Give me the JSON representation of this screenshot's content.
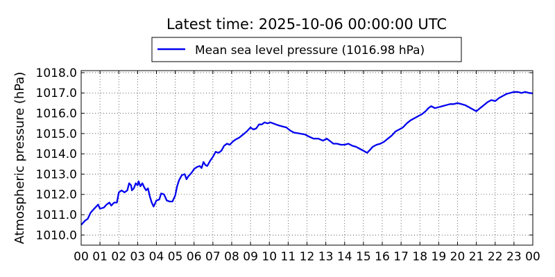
{
  "chart_data": {
    "type": "line",
    "title": "Latest time: 2025-10-06 00:00:00 UTC",
    "ylabel": "Atmospheric pressure (hPa)",
    "xlabel": "",
    "ylim": [
      1009.5,
      1018.1
    ],
    "xlim": [
      0,
      24
    ],
    "yticks": [
      1010.0,
      1011.0,
      1012.0,
      1013.0,
      1014.0,
      1015.0,
      1016.0,
      1017.0,
      1018.0
    ],
    "xtick_labels": [
      "00",
      "01",
      "02",
      "03",
      "04",
      "05",
      "06",
      "07",
      "08",
      "09",
      "10",
      "11",
      "12",
      "13",
      "14",
      "15",
      "16",
      "17",
      "18",
      "19",
      "20",
      "21",
      "22",
      "23",
      "00"
    ],
    "grid": true,
    "legend_position": "top-center",
    "series": [
      {
        "name": "Mean sea level pressure (1016.98 hPa)",
        "color": "#0000ee",
        "points": [
          [
            0.0,
            1010.5
          ],
          [
            0.2,
            1010.7
          ],
          [
            0.35,
            1010.8
          ],
          [
            0.5,
            1011.1
          ],
          [
            0.65,
            1011.25
          ],
          [
            0.8,
            1011.4
          ],
          [
            0.9,
            1011.5
          ],
          [
            1.0,
            1011.3
          ],
          [
            1.2,
            1011.35
          ],
          [
            1.35,
            1011.5
          ],
          [
            1.5,
            1011.6
          ],
          [
            1.6,
            1011.45
          ],
          [
            1.75,
            1011.6
          ],
          [
            1.9,
            1011.6
          ],
          [
            2.0,
            1012.1
          ],
          [
            2.15,
            1012.2
          ],
          [
            2.3,
            1012.1
          ],
          [
            2.45,
            1012.2
          ],
          [
            2.55,
            1012.55
          ],
          [
            2.65,
            1012.45
          ],
          [
            2.7,
            1012.2
          ],
          [
            2.8,
            1012.3
          ],
          [
            2.9,
            1012.55
          ],
          [
            3.0,
            1012.45
          ],
          [
            3.05,
            1012.65
          ],
          [
            3.15,
            1012.4
          ],
          [
            3.25,
            1012.55
          ],
          [
            3.35,
            1012.35
          ],
          [
            3.45,
            1012.2
          ],
          [
            3.55,
            1012.3
          ],
          [
            3.65,
            1011.9
          ],
          [
            3.75,
            1011.6
          ],
          [
            3.85,
            1011.4
          ],
          [
            4.0,
            1011.7
          ],
          [
            4.15,
            1011.75
          ],
          [
            4.25,
            1012.05
          ],
          [
            4.4,
            1012.0
          ],
          [
            4.55,
            1011.7
          ],
          [
            4.7,
            1011.65
          ],
          [
            4.85,
            1011.65
          ],
          [
            5.0,
            1011.95
          ],
          [
            5.1,
            1012.4
          ],
          [
            5.2,
            1012.7
          ],
          [
            5.35,
            1012.95
          ],
          [
            5.5,
            1013.0
          ],
          [
            5.6,
            1012.75
          ],
          [
            5.7,
            1012.9
          ],
          [
            5.85,
            1013.05
          ],
          [
            6.0,
            1013.25
          ],
          [
            6.15,
            1013.35
          ],
          [
            6.3,
            1013.4
          ],
          [
            6.4,
            1013.3
          ],
          [
            6.5,
            1013.6
          ],
          [
            6.6,
            1013.45
          ],
          [
            6.7,
            1013.4
          ],
          [
            6.85,
            1013.65
          ],
          [
            7.0,
            1013.85
          ],
          [
            7.15,
            1014.1
          ],
          [
            7.3,
            1014.05
          ],
          [
            7.45,
            1014.15
          ],
          [
            7.6,
            1014.4
          ],
          [
            7.75,
            1014.5
          ],
          [
            7.9,
            1014.45
          ],
          [
            8.05,
            1014.6
          ],
          [
            8.2,
            1014.7
          ],
          [
            8.4,
            1014.8
          ],
          [
            8.6,
            1014.95
          ],
          [
            8.8,
            1015.1
          ],
          [
            9.0,
            1015.3
          ],
          [
            9.15,
            1015.2
          ],
          [
            9.3,
            1015.25
          ],
          [
            9.45,
            1015.45
          ],
          [
            9.6,
            1015.45
          ],
          [
            9.75,
            1015.55
          ],
          [
            9.9,
            1015.5
          ],
          [
            10.05,
            1015.55
          ],
          [
            10.2,
            1015.5
          ],
          [
            10.35,
            1015.45
          ],
          [
            10.5,
            1015.4
          ],
          [
            10.7,
            1015.35
          ],
          [
            10.9,
            1015.3
          ],
          [
            11.1,
            1015.15
          ],
          [
            11.3,
            1015.05
          ],
          [
            11.6,
            1015.0
          ],
          [
            11.9,
            1014.95
          ],
          [
            12.1,
            1014.85
          ],
          [
            12.35,
            1014.75
          ],
          [
            12.6,
            1014.75
          ],
          [
            12.85,
            1014.65
          ],
          [
            13.05,
            1014.75
          ],
          [
            13.2,
            1014.65
          ],
          [
            13.4,
            1014.5
          ],
          [
            13.6,
            1014.5
          ],
          [
            13.8,
            1014.45
          ],
          [
            14.0,
            1014.45
          ],
          [
            14.2,
            1014.5
          ],
          [
            14.4,
            1014.4
          ],
          [
            14.6,
            1014.35
          ],
          [
            14.8,
            1014.25
          ],
          [
            15.0,
            1014.15
          ],
          [
            15.2,
            1014.05
          ],
          [
            15.35,
            1014.2
          ],
          [
            15.5,
            1014.35
          ],
          [
            15.7,
            1014.45
          ],
          [
            15.9,
            1014.5
          ],
          [
            16.1,
            1014.6
          ],
          [
            16.3,
            1014.75
          ],
          [
            16.5,
            1014.9
          ],
          [
            16.7,
            1015.1
          ],
          [
            16.9,
            1015.2
          ],
          [
            17.1,
            1015.3
          ],
          [
            17.3,
            1015.5
          ],
          [
            17.5,
            1015.65
          ],
          [
            17.7,
            1015.75
          ],
          [
            17.9,
            1015.85
          ],
          [
            18.1,
            1015.95
          ],
          [
            18.3,
            1016.1
          ],
          [
            18.45,
            1016.25
          ],
          [
            18.6,
            1016.35
          ],
          [
            18.8,
            1016.25
          ],
          [
            19.0,
            1016.3
          ],
          [
            19.2,
            1016.35
          ],
          [
            19.4,
            1016.4
          ],
          [
            19.6,
            1016.45
          ],
          [
            19.8,
            1016.45
          ],
          [
            20.0,
            1016.5
          ],
          [
            20.2,
            1016.45
          ],
          [
            20.4,
            1016.4
          ],
          [
            20.6,
            1016.3
          ],
          [
            20.8,
            1016.2
          ],
          [
            21.0,
            1016.1
          ],
          [
            21.2,
            1016.25
          ],
          [
            21.4,
            1016.4
          ],
          [
            21.6,
            1016.55
          ],
          [
            21.8,
            1016.65
          ],
          [
            22.0,
            1016.6
          ],
          [
            22.2,
            1016.75
          ],
          [
            22.4,
            1016.85
          ],
          [
            22.6,
            1016.95
          ],
          [
            22.8,
            1017.0
          ],
          [
            23.0,
            1017.05
          ],
          [
            23.2,
            1017.05
          ],
          [
            23.4,
            1017.0
          ],
          [
            23.6,
            1017.05
          ],
          [
            23.8,
            1017.0
          ],
          [
            24.0,
            1016.98
          ]
        ]
      }
    ]
  }
}
